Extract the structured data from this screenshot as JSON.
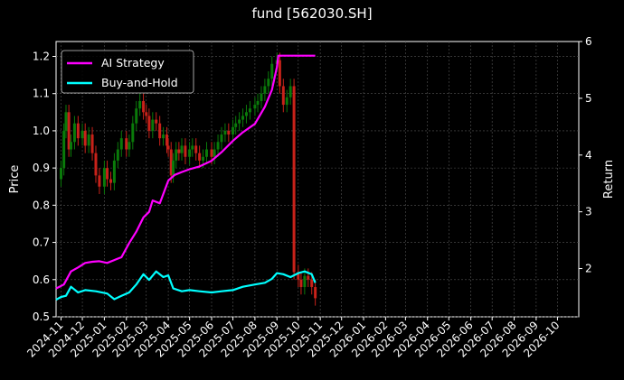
{
  "title": "fund [562030.SH]",
  "chart_data": {
    "type": "line",
    "title": "fund [562030.SH]",
    "ylabel_left": "Price",
    "ylabel_right": "Return",
    "xlabel": "",
    "ylim_left": [
      0.5,
      1.24
    ],
    "ylim_right": [
      1.15,
      6.0
    ],
    "xlim": [
      "2024-10-25",
      "2026-10-31"
    ],
    "grid": true,
    "legend_position": "upper-left",
    "left_ticks": [
      "0.5",
      "0.6",
      "0.7",
      "0.8",
      "0.9",
      "1.0",
      "1.1",
      "1.2"
    ],
    "right_ticks": [
      "2",
      "3",
      "4",
      "5",
      "6"
    ],
    "x_tick_labels": [
      "2024-11",
      "2024-12",
      "2025-01",
      "2025-02",
      "2025-03",
      "2025-04",
      "2025-05",
      "2025-06",
      "2025-07",
      "2025-08",
      "2025-09",
      "2025-10",
      "2025-11",
      "2025-12",
      "2026-01",
      "2026-02",
      "2026-03",
      "2026-04",
      "2026-05",
      "2026-06",
      "2026-07",
      "2026-08",
      "2026-09",
      "2026-10"
    ],
    "colors": {
      "ai": "#ff00ff",
      "bh": "#00ffff",
      "up": "#0a7a0a",
      "down": "#c8221a",
      "grid": "#555555",
      "axis": "#ffffff"
    },
    "series": [
      {
        "name": "AI Strategy",
        "axis": "right",
        "x": [
          "2024-10-25",
          "2024-11-05",
          "2024-11-15",
          "2024-11-25",
          "2024-12-05",
          "2024-12-15",
          "2024-12-25",
          "2025-01-05",
          "2025-01-15",
          "2025-01-25",
          "2025-02-05",
          "2025-02-15",
          "2025-02-25",
          "2025-03-05",
          "2025-03-10",
          "2025-03-20",
          "2025-04-01",
          "2025-04-10",
          "2025-04-20",
          "2025-05-01",
          "2025-05-15",
          "2025-06-01",
          "2025-06-15",
          "2025-07-01",
          "2025-07-15",
          "2025-08-01",
          "2025-08-15",
          "2025-08-25",
          "2025-09-01",
          "2025-09-03",
          "2025-09-10",
          "2025-09-20",
          "2025-10-01",
          "2025-10-15",
          "2025-10-25"
        ],
        "values": [
          1.65,
          1.72,
          1.95,
          2.02,
          2.1,
          2.12,
          2.13,
          2.1,
          2.15,
          2.2,
          2.45,
          2.65,
          2.9,
          3.0,
          3.2,
          3.15,
          3.55,
          3.65,
          3.7,
          3.75,
          3.8,
          3.9,
          4.05,
          4.25,
          4.4,
          4.55,
          4.85,
          5.15,
          5.55,
          5.75,
          5.75,
          5.75,
          5.75,
          5.75,
          5.75
        ]
      },
      {
        "name": "Buy-and-Hold",
        "axis": "right",
        "x": [
          "2024-10-25",
          "2024-11-01",
          "2024-11-08",
          "2024-11-15",
          "2024-11-25",
          "2024-12-05",
          "2024-12-20",
          "2025-01-05",
          "2025-01-15",
          "2025-01-25",
          "2025-02-05",
          "2025-02-15",
          "2025-02-25",
          "2025-03-05",
          "2025-03-15",
          "2025-03-25",
          "2025-04-01",
          "2025-04-08",
          "2025-04-20",
          "2025-05-01",
          "2025-05-15",
          "2025-06-01",
          "2025-06-15",
          "2025-07-01",
          "2025-07-15",
          "2025-08-01",
          "2025-08-15",
          "2025-08-25",
          "2025-09-01",
          "2025-09-10",
          "2025-09-20",
          "2025-10-01",
          "2025-10-10",
          "2025-10-20",
          "2025-10-25"
        ],
        "values": [
          1.45,
          1.5,
          1.52,
          1.68,
          1.58,
          1.62,
          1.6,
          1.56,
          1.46,
          1.52,
          1.58,
          1.72,
          1.9,
          1.8,
          1.95,
          1.85,
          1.88,
          1.65,
          1.6,
          1.62,
          1.6,
          1.58,
          1.6,
          1.62,
          1.68,
          1.72,
          1.75,
          1.82,
          1.92,
          1.9,
          1.85,
          1.92,
          1.95,
          1.9,
          1.75
        ]
      },
      {
        "name": "Price (candles)",
        "axis": "left",
        "x": [
          "2024-10-25",
          "2024-11-01",
          "2024-11-05",
          "2024-11-08",
          "2024-11-12",
          "2024-11-15",
          "2024-11-20",
          "2024-11-25",
          "2024-12-01",
          "2024-12-05",
          "2024-12-10",
          "2024-12-15",
          "2024-12-20",
          "2024-12-25",
          "2025-01-01",
          "2025-01-05",
          "2025-01-10",
          "2025-01-15",
          "2025-01-20",
          "2025-01-25",
          "2025-02-01",
          "2025-02-05",
          "2025-02-10",
          "2025-02-15",
          "2025-02-20",
          "2025-02-25",
          "2025-03-01",
          "2025-03-05",
          "2025-03-10",
          "2025-03-15",
          "2025-03-20",
          "2025-03-25",
          "2025-03-30",
          "2025-04-01",
          "2025-04-05",
          "2025-04-08",
          "2025-04-12",
          "2025-04-16",
          "2025-04-20",
          "2025-04-25",
          "2025-05-01",
          "2025-05-05",
          "2025-05-10",
          "2025-05-15",
          "2025-05-20",
          "2025-05-25",
          "2025-06-01",
          "2025-06-05",
          "2025-06-10",
          "2025-06-15",
          "2025-06-20",
          "2025-06-25",
          "2025-07-01",
          "2025-07-05",
          "2025-07-10",
          "2025-07-15",
          "2025-07-20",
          "2025-07-25",
          "2025-08-01",
          "2025-08-05",
          "2025-08-10",
          "2025-08-15",
          "2025-08-20",
          "2025-08-25",
          "2025-09-01",
          "2025-09-05",
          "2025-09-10",
          "2025-09-15",
          "2025-09-20",
          "2025-09-25",
          "2025-10-01",
          "2025-10-05",
          "2025-10-10",
          "2025-10-15",
          "2025-10-20",
          "2025-10-25"
        ],
        "values": [
          0.87,
          0.9,
          1.0,
          1.05,
          0.95,
          0.97,
          1.02,
          0.98,
          1.0,
          0.96,
          0.99,
          0.94,
          0.88,
          0.85,
          0.9,
          0.87,
          0.86,
          0.92,
          0.95,
          0.98,
          0.95,
          0.97,
          1.02,
          1.06,
          1.08,
          1.05,
          1.04,
          1.0,
          1.03,
          1.02,
          0.98,
          0.99,
          0.96,
          0.95,
          0.88,
          0.92,
          0.95,
          0.94,
          0.96,
          0.93,
          0.95,
          0.96,
          0.94,
          0.92,
          0.93,
          0.95,
          0.93,
          0.95,
          0.97,
          0.99,
          1.0,
          0.99,
          1.01,
          1.02,
          1.03,
          1.04,
          1.05,
          1.06,
          1.07,
          1.08,
          1.1,
          1.12,
          1.14,
          1.18,
          1.19,
          1.12,
          1.07,
          1.09,
          1.12,
          0.62,
          0.6,
          0.58,
          0.61,
          0.6,
          0.58,
          0.55
        ]
      }
    ]
  }
}
